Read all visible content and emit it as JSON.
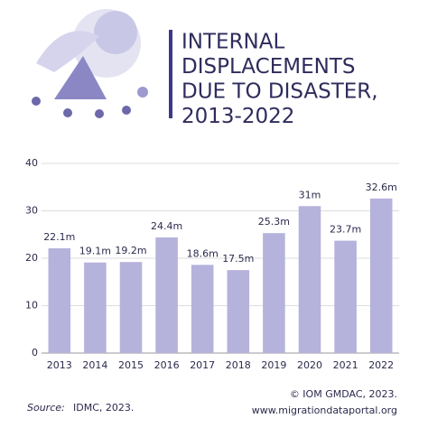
{
  "chart_data": {
    "type": "bar",
    "title_lines": [
      "INTERNAL",
      "DISPLACEMENTS",
      "DUE TO DISASTER,",
      "2013-2022"
    ],
    "categories": [
      "2013",
      "2014",
      "2015",
      "2016",
      "2017",
      "2018",
      "2019",
      "2020",
      "2021",
      "2022"
    ],
    "values": [
      22.1,
      19.1,
      19.2,
      24.4,
      18.6,
      17.5,
      25.3,
      31,
      23.7,
      32.6
    ],
    "value_labels": [
      "22.1m",
      "19.1m",
      "19.2m",
      "24.4m",
      "18.6m",
      "17.5m",
      "25.3m",
      "31m",
      "23.7m",
      "32.6m"
    ],
    "color": "#b5b2db",
    "ylim": [
      0,
      40
    ],
    "yticks": [
      0,
      10,
      20,
      30,
      40
    ],
    "grid": true,
    "source_label": "Source:",
    "source": "IDMC, 2023.",
    "credits": [
      "© IOM GMDAC, 2023.",
      "www.migrationdataportal.org"
    ]
  }
}
